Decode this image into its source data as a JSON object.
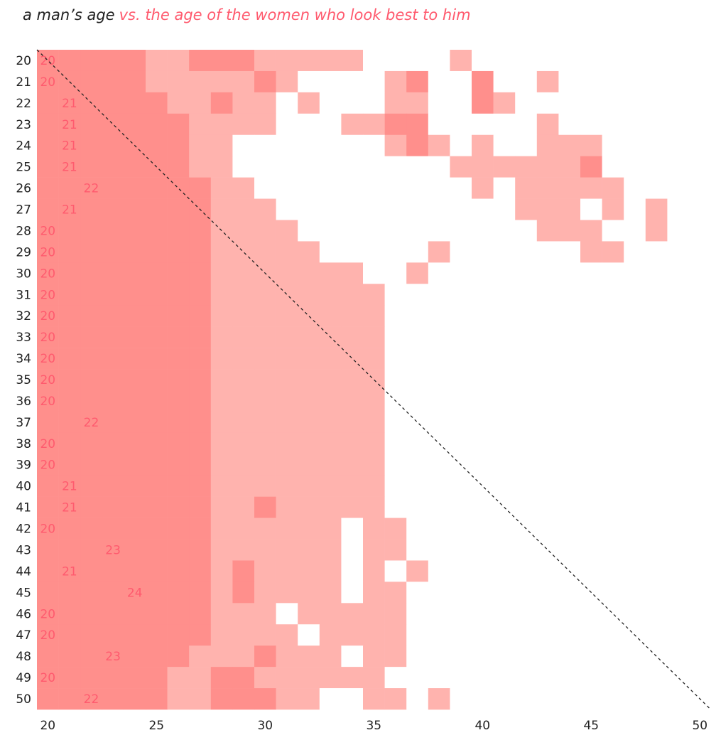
{
  "chart_data": {
    "type": "heatmap",
    "title": "a man’s age",
    "subtitle": "vs. the age of the women who look best to him",
    "x": [
      20,
      21,
      22,
      23,
      24,
      25,
      26,
      27,
      28,
      29,
      30,
      31,
      32,
      33,
      34,
      35,
      36,
      37,
      38,
      39,
      40,
      41,
      42,
      43,
      44,
      45,
      46,
      47,
      48,
      49
    ],
    "y": [
      20,
      21,
      22,
      23,
      24,
      25,
      26,
      27,
      28,
      29,
      30,
      31,
      32,
      33,
      34,
      35,
      36,
      37,
      38,
      39,
      40,
      41,
      42,
      43,
      44,
      45,
      46,
      47,
      48,
      49,
      50
    ],
    "colors": [
      "#ffffff",
      "#ffb3ae",
      "#ff8f8c"
    ],
    "values": [
      [
        2,
        2,
        2,
        2,
        2,
        1,
        1,
        2,
        2,
        2,
        1,
        1,
        1,
        1,
        1,
        0,
        0,
        0,
        0,
        1,
        0,
        0,
        0,
        0,
        0,
        0,
        0,
        0,
        0,
        0
      ],
      [
        2,
        2,
        2,
        2,
        2,
        1,
        1,
        1,
        1,
        1,
        2,
        1,
        0,
        0,
        0,
        0,
        1,
        2,
        0,
        0,
        2,
        0,
        0,
        1,
        0,
        0,
        0,
        0,
        0,
        0
      ],
      [
        2,
        2,
        2,
        2,
        2,
        2,
        1,
        1,
        2,
        1,
        1,
        0,
        1,
        0,
        0,
        0,
        1,
        1,
        0,
        0,
        2,
        1,
        0,
        0,
        0,
        0,
        0,
        0,
        0,
        0
      ],
      [
        2,
        2,
        2,
        2,
        2,
        2,
        2,
        1,
        1,
        1,
        1,
        0,
        0,
        0,
        1,
        1,
        2,
        2,
        0,
        0,
        0,
        0,
        0,
        1,
        0,
        0,
        0,
        0,
        0,
        0
      ],
      [
        2,
        2,
        2,
        2,
        2,
        2,
        2,
        1,
        1,
        0,
        0,
        0,
        0,
        0,
        0,
        0,
        1,
        2,
        1,
        0,
        1,
        0,
        0,
        1,
        1,
        1,
        0,
        0,
        0,
        0
      ],
      [
        2,
        2,
        2,
        2,
        2,
        2,
        2,
        1,
        1,
        0,
        0,
        0,
        0,
        0,
        0,
        0,
        0,
        0,
        0,
        1,
        1,
        1,
        1,
        1,
        1,
        2,
        0,
        0,
        0,
        0
      ],
      [
        2,
        2,
        2,
        2,
        2,
        2,
        2,
        2,
        1,
        1,
        0,
        0,
        0,
        0,
        0,
        0,
        0,
        0,
        0,
        0,
        1,
        0,
        1,
        1,
        1,
        1,
        1,
        0,
        0,
        0
      ],
      [
        2,
        2,
        2,
        2,
        2,
        2,
        2,
        2,
        1,
        1,
        1,
        0,
        0,
        0,
        0,
        0,
        0,
        0,
        0,
        0,
        0,
        0,
        1,
        1,
        1,
        0,
        1,
        0,
        1,
        0
      ],
      [
        2,
        2,
        2,
        2,
        2,
        2,
        2,
        2,
        1,
        1,
        1,
        1,
        0,
        0,
        0,
        0,
        0,
        0,
        0,
        0,
        0,
        0,
        0,
        1,
        1,
        1,
        0,
        0,
        1,
        0
      ],
      [
        2,
        2,
        2,
        2,
        2,
        2,
        2,
        2,
        1,
        1,
        1,
        1,
        1,
        0,
        0,
        0,
        0,
        0,
        1,
        0,
        0,
        0,
        0,
        0,
        0,
        1,
        1,
        0,
        0,
        0
      ],
      [
        2,
        2,
        2,
        2,
        2,
        2,
        2,
        2,
        1,
        1,
        1,
        1,
        1,
        1,
        1,
        0,
        0,
        1,
        0,
        0,
        0,
        0,
        0,
        0,
        0,
        0,
        0,
        0,
        0,
        0
      ],
      [
        2,
        2,
        2,
        2,
        2,
        2,
        2,
        2,
        1,
        1,
        1,
        1,
        1,
        1,
        1,
        1,
        0,
        0,
        0,
        0,
        0,
        0,
        0,
        0,
        0,
        0,
        0,
        0,
        0,
        0
      ],
      [
        2,
        2,
        2,
        2,
        2,
        2,
        2,
        2,
        1,
        1,
        1,
        1,
        1,
        1,
        1,
        1,
        0,
        0,
        0,
        0,
        0,
        0,
        0,
        0,
        0,
        0,
        0,
        0,
        0,
        0
      ],
      [
        2,
        2,
        2,
        2,
        2,
        2,
        2,
        2,
        1,
        1,
        1,
        1,
        1,
        1,
        1,
        1,
        0,
        0,
        0,
        0,
        0,
        0,
        0,
        0,
        0,
        0,
        0,
        0,
        0,
        0
      ],
      [
        2,
        2,
        2,
        2,
        2,
        2,
        2,
        2,
        1,
        1,
        1,
        1,
        1,
        1,
        1,
        1,
        0,
        0,
        0,
        0,
        0,
        0,
        0,
        0,
        0,
        0,
        0,
        0,
        0,
        0
      ],
      [
        2,
        2,
        2,
        2,
        2,
        2,
        2,
        2,
        1,
        1,
        1,
        1,
        1,
        1,
        1,
        1,
        0,
        0,
        0,
        0,
        0,
        0,
        0,
        0,
        0,
        0,
        0,
        0,
        0,
        0
      ],
      [
        2,
        2,
        2,
        2,
        2,
        2,
        2,
        2,
        1,
        1,
        1,
        1,
        1,
        1,
        1,
        1,
        0,
        0,
        0,
        0,
        0,
        0,
        0,
        0,
        0,
        0,
        0,
        0,
        0,
        0
      ],
      [
        2,
        2,
        2,
        2,
        2,
        2,
        2,
        2,
        1,
        1,
        1,
        1,
        1,
        1,
        1,
        1,
        0,
        0,
        0,
        0,
        0,
        0,
        0,
        0,
        0,
        0,
        0,
        0,
        0,
        0
      ],
      [
        2,
        2,
        2,
        2,
        2,
        2,
        2,
        2,
        1,
        1,
        1,
        1,
        1,
        1,
        1,
        1,
        0,
        0,
        0,
        0,
        0,
        0,
        0,
        0,
        0,
        0,
        0,
        0,
        0,
        0
      ],
      [
        2,
        2,
        2,
        2,
        2,
        2,
        2,
        2,
        1,
        1,
        1,
        1,
        1,
        1,
        1,
        1,
        0,
        0,
        0,
        0,
        0,
        0,
        0,
        0,
        0,
        0,
        0,
        0,
        0,
        0
      ],
      [
        2,
        2,
        2,
        2,
        2,
        2,
        2,
        2,
        1,
        1,
        1,
        1,
        1,
        1,
        1,
        1,
        0,
        0,
        0,
        0,
        0,
        0,
        0,
        0,
        0,
        0,
        0,
        0,
        0,
        0
      ],
      [
        2,
        2,
        2,
        2,
        2,
        2,
        2,
        2,
        1,
        1,
        2,
        1,
        1,
        1,
        1,
        1,
        0,
        0,
        0,
        0,
        0,
        0,
        0,
        0,
        0,
        0,
        0,
        0,
        0,
        0
      ],
      [
        2,
        2,
        2,
        2,
        2,
        2,
        2,
        2,
        1,
        1,
        1,
        1,
        1,
        1,
        0,
        1,
        1,
        0,
        0,
        0,
        0,
        0,
        0,
        0,
        0,
        0,
        0,
        0,
        0,
        0
      ],
      [
        2,
        2,
        2,
        2,
        2,
        2,
        2,
        2,
        1,
        1,
        1,
        1,
        1,
        1,
        0,
        1,
        1,
        0,
        0,
        0,
        0,
        0,
        0,
        0,
        0,
        0,
        0,
        0,
        0,
        0
      ],
      [
        2,
        2,
        2,
        2,
        2,
        2,
        2,
        2,
        1,
        2,
        1,
        1,
        1,
        1,
        0,
        1,
        0,
        1,
        0,
        0,
        0,
        0,
        0,
        0,
        0,
        0,
        0,
        0,
        0,
        0
      ],
      [
        2,
        2,
        2,
        2,
        2,
        2,
        2,
        2,
        1,
        2,
        1,
        1,
        1,
        1,
        0,
        1,
        1,
        0,
        0,
        0,
        0,
        0,
        0,
        0,
        0,
        0,
        0,
        0,
        0,
        0
      ],
      [
        2,
        2,
        2,
        2,
        2,
        2,
        2,
        2,
        1,
        1,
        1,
        0,
        1,
        1,
        1,
        1,
        1,
        0,
        0,
        0,
        0,
        0,
        0,
        0,
        0,
        0,
        0,
        0,
        0,
        0
      ],
      [
        2,
        2,
        2,
        2,
        2,
        2,
        2,
        2,
        1,
        1,
        1,
        1,
        0,
        1,
        1,
        1,
        1,
        0,
        0,
        0,
        0,
        0,
        0,
        0,
        0,
        0,
        0,
        0,
        0,
        0
      ],
      [
        2,
        2,
        2,
        2,
        2,
        2,
        2,
        1,
        1,
        1,
        2,
        1,
        1,
        1,
        0,
        1,
        1,
        0,
        0,
        0,
        0,
        0,
        0,
        0,
        0,
        0,
        0,
        0,
        0,
        0
      ],
      [
        2,
        2,
        2,
        2,
        2,
        2,
        1,
        1,
        2,
        2,
        1,
        1,
        1,
        1,
        1,
        1,
        0,
        0,
        0,
        0,
        0,
        0,
        0,
        0,
        0,
        0,
        0,
        0,
        0,
        0
      ],
      [
        2,
        2,
        2,
        2,
        2,
        2,
        1,
        1,
        2,
        2,
        2,
        1,
        1,
        0,
        0,
        1,
        1,
        0,
        1,
        0,
        0,
        0,
        0,
        0,
        0,
        0,
        0,
        0,
        0,
        0
      ]
    ],
    "best_age": [
      20,
      20,
      21,
      21,
      21,
      21,
      22,
      21,
      20,
      20,
      20,
      20,
      20,
      20,
      20,
      20,
      20,
      22,
      20,
      20,
      21,
      21,
      20,
      23,
      21,
      24,
      20,
      20,
      23,
      20,
      22
    ],
    "xlim": [
      19.5,
      50.5
    ],
    "ylim": [
      19.5,
      50.5
    ],
    "xticks": [
      20,
      25,
      30,
      35,
      40,
      45,
      50
    ],
    "yticks": [
      20,
      21,
      22,
      23,
      24,
      25,
      26,
      27,
      28,
      29,
      30,
      31,
      32,
      33,
      34,
      35,
      36,
      37,
      38,
      39,
      40,
      41,
      42,
      43,
      44,
      45,
      46,
      47,
      48,
      49,
      50
    ],
    "diagonal": true
  }
}
